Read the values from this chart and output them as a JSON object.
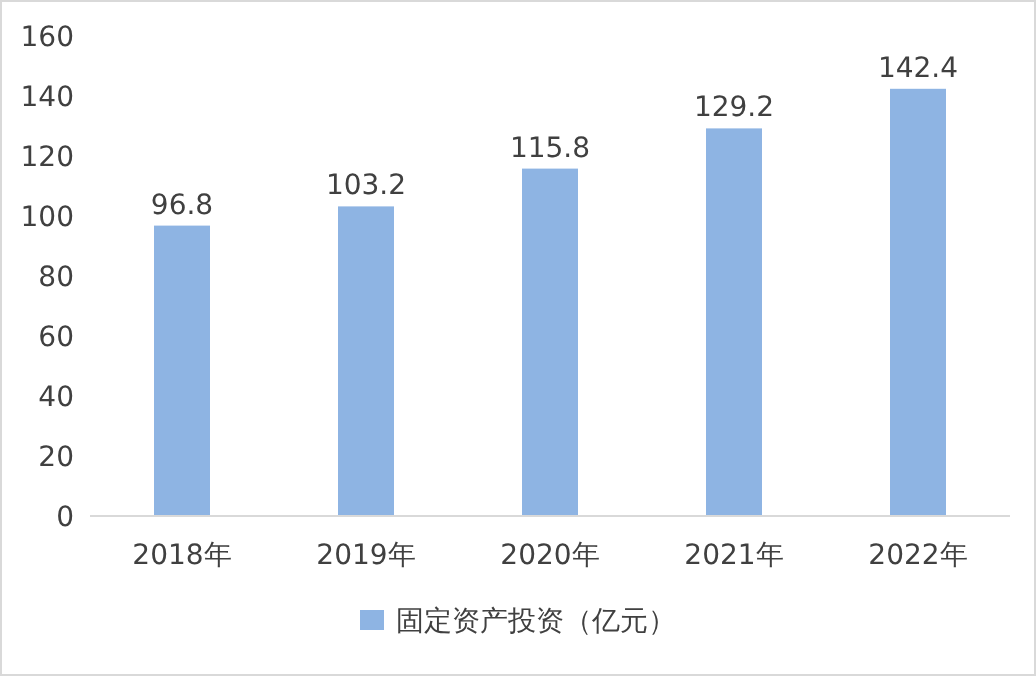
{
  "chart_data": {
    "type": "bar",
    "categories": [
      "2018年",
      "2019年",
      "2020年",
      "2021年",
      "2022年"
    ],
    "series": [
      {
        "name": "固定资产投资（亿元）",
        "color": "#8eb4e3",
        "values": [
          96.8,
          103.2,
          115.8,
          129.2,
          142.4
        ]
      }
    ],
    "ylim": [
      0,
      160
    ],
    "yticks": [
      0,
      20,
      40,
      60,
      80,
      100,
      120,
      140,
      160
    ],
    "data_labels": true,
    "grid": false,
    "legend": "bottom"
  }
}
